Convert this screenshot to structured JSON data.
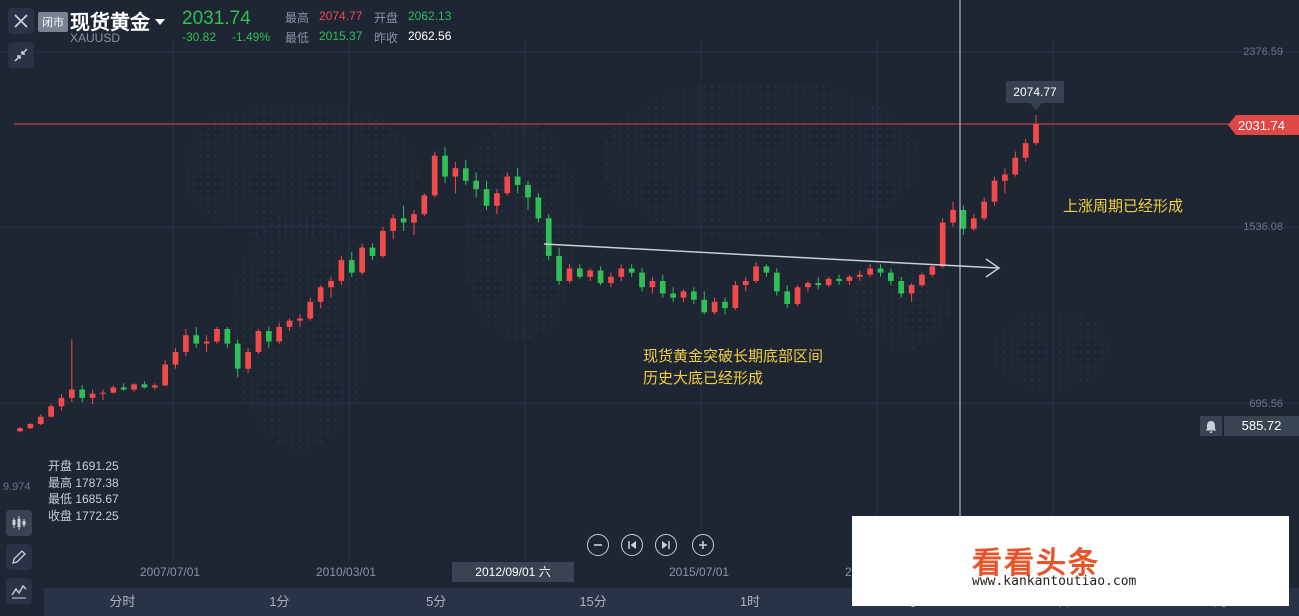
{
  "header": {
    "close_badge": "闭市",
    "title": "现货黄金",
    "symbol": "XAUUSD",
    "price": "2031.74",
    "change": "-30.82",
    "change_pct": "-1.49%",
    "high_label": "最高",
    "high_value": "2074.77",
    "open_label": "开盘",
    "open_value": "2062.13",
    "low_label": "最低",
    "low_value": "2015.37",
    "prev_label": "昨收",
    "prev_value": "2062.56"
  },
  "ohlc": {
    "open": "开盘 1691.25",
    "high": "最高 1787.38",
    "low": "最低 1685.67",
    "close": "收盘 1772.25"
  },
  "left_edge_value": "9.974",
  "y_axis": {
    "top": "2376.59",
    "mid": "1536.08",
    "low": "695.56"
  },
  "price_tag": "2031.74",
  "crosshair_tag": "585.72",
  "peak_tooltip": "2074.77",
  "x_axis": {
    "t1": "2007/07/01",
    "t2": "2010/03/01",
    "t3": "2012/09/01 六",
    "t4": "2015/07/01",
    "t5": "20"
  },
  "annotations": {
    "line1": "现货黄金突破长期底部区间",
    "line2": "历史大底已经形成",
    "right": "上涨周期已经形成"
  },
  "controls": [
    "zoom-out",
    "prev",
    "next",
    "zoom-in"
  ],
  "timeframes": [
    "分时",
    "1分",
    "5分",
    "15分",
    "1时",
    "4时",
    "日",
    "周"
  ],
  "watermark": {
    "title": "看看头条",
    "url": "www.kankantoutiao.com"
  },
  "colors": {
    "background": "#1e2533",
    "up": "#f04a4a",
    "down": "#2fbf56",
    "annotation": "#f0d040",
    "price_line": "#e04848"
  },
  "chart_data": {
    "type": "candlestick",
    "y_ticks": [
      2376.59,
      1536.08,
      695.56
    ],
    "last_price": 2031.74,
    "peak": 2074.77,
    "candles": [
      [
        560,
        580,
        555,
        575
      ],
      [
        575,
        600,
        570,
        595
      ],
      [
        595,
        640,
        590,
        630
      ],
      [
        630,
        690,
        625,
        680
      ],
      [
        680,
        740,
        660,
        720
      ],
      [
        720,
        1000,
        700,
        760
      ],
      [
        760,
        780,
        700,
        720
      ],
      [
        720,
        760,
        690,
        740
      ],
      [
        740,
        760,
        710,
        745
      ],
      [
        745,
        780,
        740,
        770
      ],
      [
        770,
        790,
        755,
        760
      ],
      [
        760,
        790,
        750,
        785
      ],
      [
        785,
        800,
        765,
        770
      ],
      [
        770,
        790,
        760,
        780
      ],
      [
        780,
        900,
        775,
        880
      ],
      [
        880,
        960,
        860,
        940
      ],
      [
        940,
        1050,
        920,
        1020
      ],
      [
        1020,
        1060,
        960,
        980
      ],
      [
        980,
        1020,
        940,
        990
      ],
      [
        990,
        1060,
        980,
        1050
      ],
      [
        1050,
        1060,
        960,
        980
      ],
      [
        980,
        1000,
        820,
        860
      ],
      [
        860,
        960,
        840,
        940
      ],
      [
        940,
        1050,
        930,
        1040
      ],
      [
        1040,
        1060,
        960,
        990
      ],
      [
        990,
        1080,
        980,
        1060
      ],
      [
        1060,
        1100,
        1040,
        1090
      ],
      [
        1090,
        1120,
        1060,
        1100
      ],
      [
        1100,
        1200,
        1090,
        1180
      ],
      [
        1180,
        1260,
        1150,
        1250
      ],
      [
        1250,
        1300,
        1200,
        1280
      ],
      [
        1280,
        1400,
        1260,
        1380
      ],
      [
        1380,
        1420,
        1300,
        1320
      ],
      [
        1320,
        1460,
        1310,
        1440
      ],
      [
        1440,
        1460,
        1380,
        1400
      ],
      [
        1400,
        1540,
        1390,
        1520
      ],
      [
        1520,
        1600,
        1480,
        1580
      ],
      [
        1580,
        1640,
        1520,
        1560
      ],
      [
        1560,
        1620,
        1500,
        1600
      ],
      [
        1600,
        1700,
        1590,
        1690
      ],
      [
        1690,
        1900,
        1680,
        1880
      ],
      [
        1880,
        1920,
        1750,
        1780
      ],
      [
        1780,
        1850,
        1700,
        1820
      ],
      [
        1820,
        1860,
        1740,
        1760
      ],
      [
        1760,
        1800,
        1680,
        1720
      ],
      [
        1720,
        1760,
        1620,
        1640
      ],
      [
        1640,
        1720,
        1600,
        1700
      ],
      [
        1700,
        1800,
        1690,
        1780
      ],
      [
        1780,
        1820,
        1700,
        1740
      ],
      [
        1740,
        1760,
        1620,
        1680
      ],
      [
        1680,
        1700,
        1560,
        1580
      ],
      [
        1580,
        1600,
        1380,
        1400
      ],
      [
        1400,
        1440,
        1260,
        1280
      ],
      [
        1280,
        1360,
        1270,
        1340
      ],
      [
        1340,
        1360,
        1290,
        1300
      ],
      [
        1300,
        1340,
        1280,
        1330
      ],
      [
        1330,
        1350,
        1260,
        1270
      ],
      [
        1270,
        1320,
        1250,
        1300
      ],
      [
        1300,
        1360,
        1280,
        1340
      ],
      [
        1340,
        1360,
        1300,
        1320
      ],
      [
        1320,
        1340,
        1230,
        1250
      ],
      [
        1250,
        1300,
        1220,
        1280
      ],
      [
        1280,
        1310,
        1200,
        1220
      ],
      [
        1220,
        1250,
        1180,
        1200
      ],
      [
        1200,
        1240,
        1180,
        1230
      ],
      [
        1230,
        1250,
        1170,
        1190
      ],
      [
        1190,
        1230,
        1120,
        1130
      ],
      [
        1130,
        1200,
        1120,
        1180
      ],
      [
        1180,
        1200,
        1120,
        1150
      ],
      [
        1150,
        1280,
        1140,
        1260
      ],
      [
        1260,
        1300,
        1230,
        1280
      ],
      [
        1280,
        1370,
        1270,
        1350
      ],
      [
        1350,
        1360,
        1300,
        1320
      ],
      [
        1320,
        1340,
        1210,
        1230
      ],
      [
        1230,
        1260,
        1150,
        1170
      ],
      [
        1170,
        1260,
        1160,
        1250
      ],
      [
        1250,
        1280,
        1230,
        1270
      ],
      [
        1270,
        1300,
        1240,
        1260
      ],
      [
        1260,
        1300,
        1250,
        1290
      ],
      [
        1290,
        1310,
        1260,
        1280
      ],
      [
        1280,
        1310,
        1260,
        1300
      ],
      [
        1300,
        1330,
        1280,
        1310
      ],
      [
        1310,
        1360,
        1300,
        1340
      ],
      [
        1340,
        1360,
        1300,
        1320
      ],
      [
        1320,
        1340,
        1260,
        1280
      ],
      [
        1280,
        1300,
        1200,
        1220
      ],
      [
        1220,
        1270,
        1180,
        1260
      ],
      [
        1260,
        1320,
        1250,
        1310
      ],
      [
        1310,
        1360,
        1300,
        1350
      ],
      [
        1350,
        1580,
        1340,
        1560
      ],
      [
        1560,
        1660,
        1540,
        1620
      ],
      [
        1620,
        1640,
        1500,
        1530
      ],
      [
        1530,
        1600,
        1520,
        1580
      ],
      [
        1580,
        1680,
        1570,
        1660
      ],
      [
        1660,
        1780,
        1640,
        1760
      ],
      [
        1760,
        1820,
        1700,
        1790
      ],
      [
        1790,
        1900,
        1780,
        1870
      ],
      [
        1870,
        1960,
        1850,
        1940
      ],
      [
        1940,
        2074.77,
        1930,
        2031.74
      ]
    ]
  }
}
